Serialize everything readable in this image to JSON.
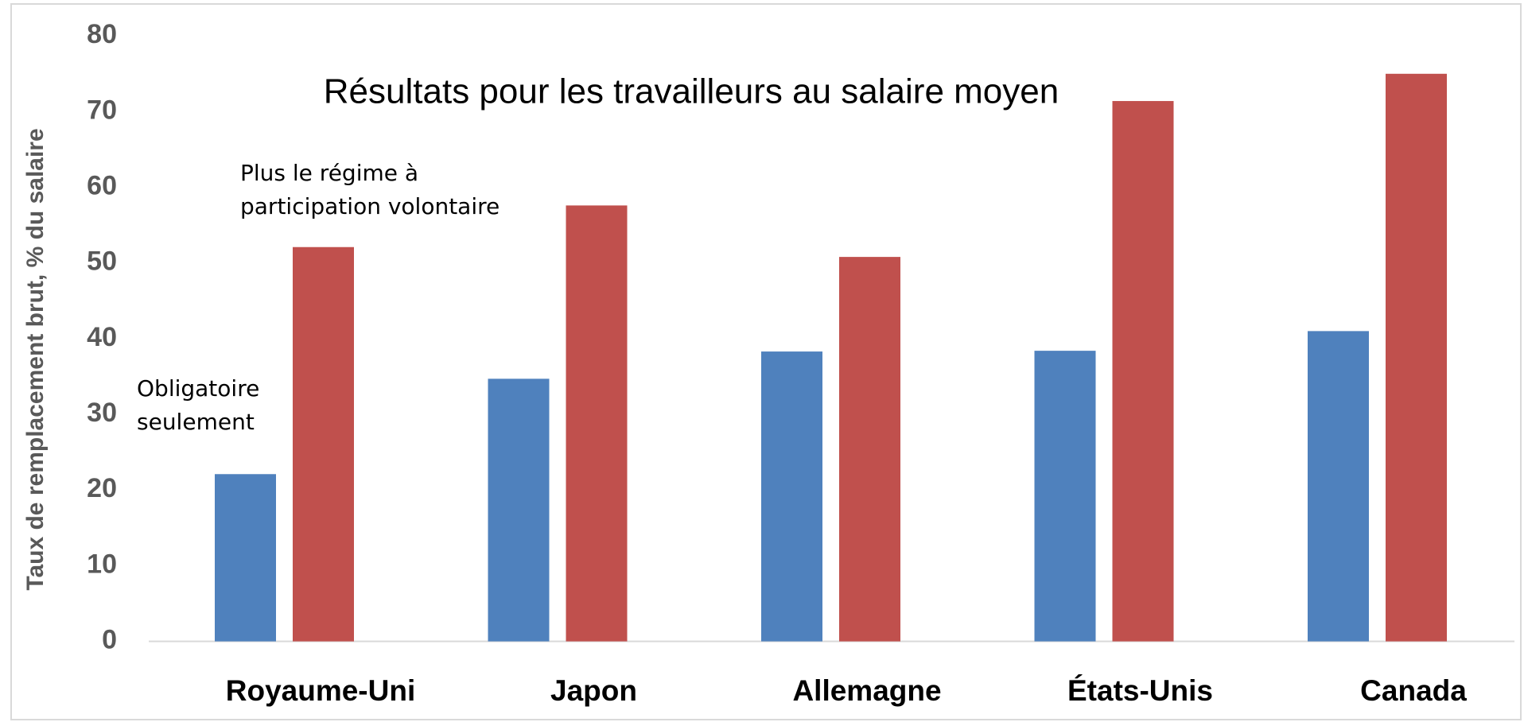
{
  "chart_data": {
    "type": "bar",
    "title": "Résultats pour les travailleurs au salaire moyen",
    "y_label": "Taux de remplacement brut, % du salaire",
    "categories": [
      "Royaume-Uni",
      "Japon",
      "Allemagne",
      "États-Unis",
      "Canada"
    ],
    "series": [
      {
        "name": "Obligatoire seulement",
        "color": "#4f81bd",
        "values": [
          22.1,
          34.7,
          38.3,
          38.4,
          41.0
        ]
      },
      {
        "name": "Plus le régime à participation volontaire",
        "color": "#c0504d",
        "values": [
          52.1,
          57.6,
          50.8,
          71.4,
          75.0
        ]
      }
    ],
    "ylim": [
      0,
      80
    ],
    "yticks": [
      0,
      10,
      20,
      30,
      40,
      50,
      60,
      70,
      80
    ],
    "grid": false
  }
}
